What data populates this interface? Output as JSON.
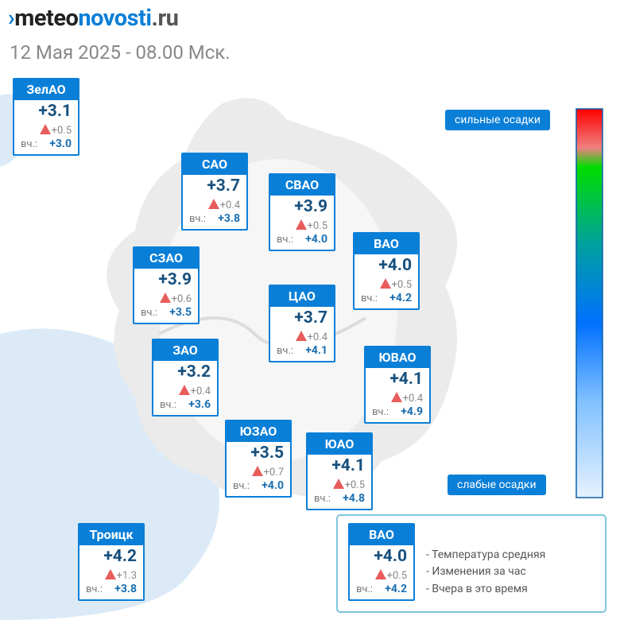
{
  "header": {
    "logo": [
      "meteo",
      "novosti",
      ".ru"
    ],
    "date": "12 Мая 2025 - 08.00 Мск."
  },
  "scale": {
    "top": "сильные осадки",
    "bottom": "слабые осадки"
  },
  "yesterday_label": "вч.:",
  "districts": [
    {
      "name": "ЗелАО",
      "temp": "+3.1",
      "change": "+0.5",
      "yesterday": "+3.0"
    },
    {
      "name": "САО",
      "temp": "+3.7",
      "change": "+0.4",
      "yesterday": "+3.8"
    },
    {
      "name": "СВАО",
      "temp": "+3.9",
      "change": "+0.5",
      "yesterday": "+4.0"
    },
    {
      "name": "ВАО",
      "temp": "+4.0",
      "change": "+0.5",
      "yesterday": "+4.2"
    },
    {
      "name": "СЗАО",
      "temp": "+3.9",
      "change": "+0.6",
      "yesterday": "+3.5"
    },
    {
      "name": "ЦАО",
      "temp": "+3.7",
      "change": "+0.4",
      "yesterday": "+4.1"
    },
    {
      "name": "ЗАО",
      "temp": "+3.2",
      "change": "+0.4",
      "yesterday": "+3.6"
    },
    {
      "name": "ЮВАО",
      "temp": "+4.1",
      "change": "+0.4",
      "yesterday": "+4.9"
    },
    {
      "name": "ЮЗАО",
      "temp": "+3.5",
      "change": "+0.7",
      "yesterday": "+4.0"
    },
    {
      "name": "ЮАО",
      "temp": "+4.1",
      "change": "+0.5",
      "yesterday": "+4.8"
    },
    {
      "name": "Троицк",
      "temp": "+4.2",
      "change": "+1.3",
      "yesterday": "+3.8"
    }
  ],
  "legend": {
    "sample": {
      "name": "ВАО",
      "temp": "+4.0",
      "change": "+0.5",
      "yesterday": "+4.2"
    },
    "lines": [
      "- Температура средняя",
      "- Изменения за час",
      "- Вчера в это время"
    ]
  }
}
